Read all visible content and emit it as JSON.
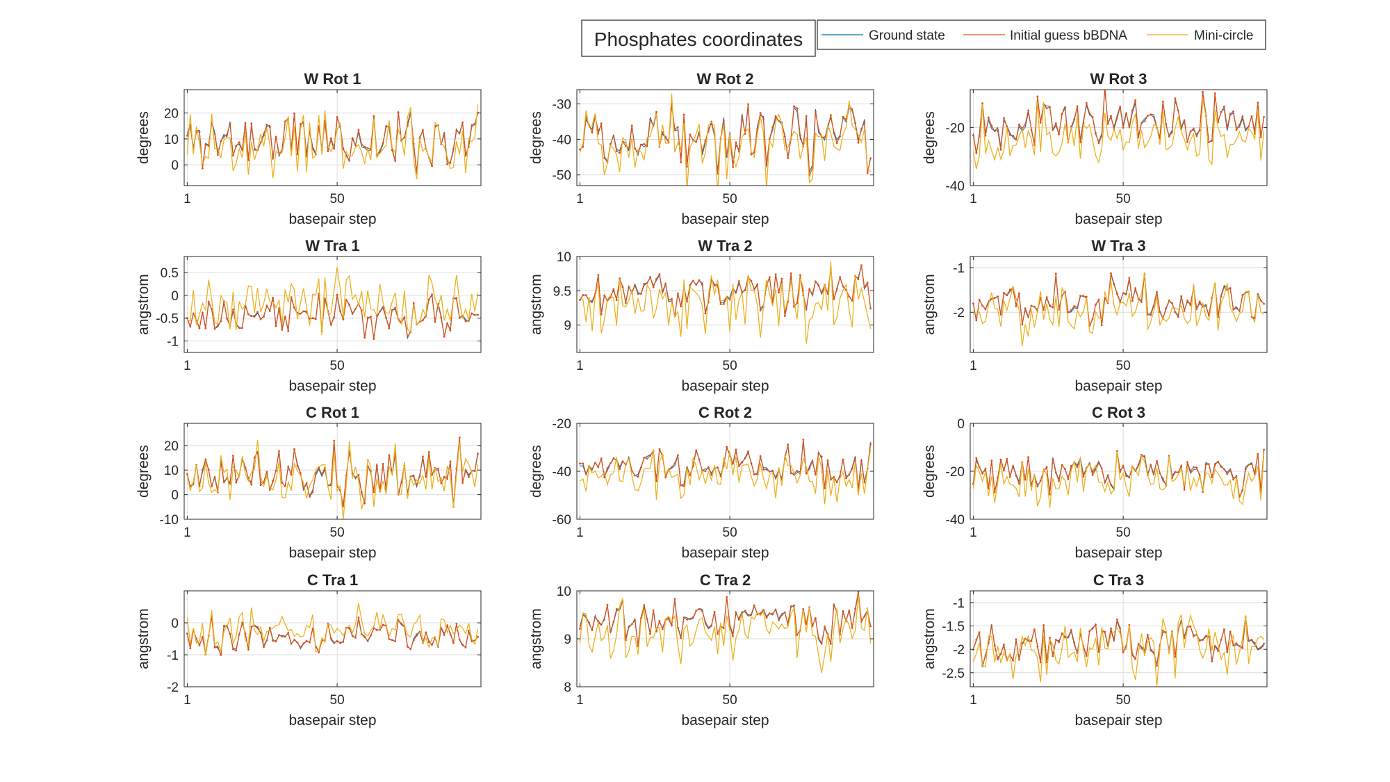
{
  "figure": {
    "suptitle": "Phosphates coordinates",
    "legend": [
      {
        "name": "Ground state",
        "color": "#0072BD"
      },
      {
        "name": "Initial guess bBDNA",
        "color": "#D95319"
      },
      {
        "name": "Mini-circle",
        "color": "#EDB120"
      }
    ]
  },
  "chart_data": [
    {
      "type": "line",
      "title": "W Rot 1",
      "xlabel": "basepair step",
      "ylabel": "degrees",
      "xlim": [
        0,
        97
      ],
      "ylim": [
        -8,
        29
      ],
      "xticks": [
        1,
        50
      ],
      "yticks": [
        0,
        10,
        20
      ],
      "series": [
        {
          "name": "Ground state",
          "seed": 11,
          "mean": 10,
          "amp": 9,
          "offset": 0,
          "jitter": 0
        },
        {
          "name": "Initial guess bBDNA",
          "seed": 11,
          "mean": 10,
          "amp": 9,
          "offset": 0,
          "jitter": 1
        },
        {
          "name": "Mini-circle",
          "seed": 11,
          "mean": 10,
          "amp": 9,
          "offset": -2,
          "jitter": 6
        }
      ]
    },
    {
      "type": "line",
      "title": "W Rot 2",
      "xlabel": "basepair step",
      "ylabel": "degrees",
      "xlim": [
        0,
        97
      ],
      "ylim": [
        -53,
        -26
      ],
      "xticks": [
        1,
        50
      ],
      "yticks": [
        -50,
        -40,
        -30
      ],
      "series": [
        {
          "name": "Ground state",
          "seed": 12,
          "mean": -38,
          "amp": 7,
          "offset": 0,
          "jitter": 0
        },
        {
          "name": "Initial guess bBDNA",
          "seed": 12,
          "mean": -38,
          "amp": 7,
          "offset": 0,
          "jitter": 1
        },
        {
          "name": "Mini-circle",
          "seed": 12,
          "mean": -38,
          "amp": 7,
          "offset": -2,
          "jitter": 5
        }
      ]
    },
    {
      "type": "line",
      "title": "W Rot 3",
      "xlabel": "basepair step",
      "ylabel": "degrees",
      "xlim": [
        0,
        97
      ],
      "ylim": [
        -40,
        -7
      ],
      "xticks": [
        1,
        50
      ],
      "yticks": [
        -40,
        -20
      ],
      "series": [
        {
          "name": "Ground state",
          "seed": 13,
          "mean": -18,
          "amp": 6,
          "offset": 0,
          "jitter": 0
        },
        {
          "name": "Initial guess bBDNA",
          "seed": 13,
          "mean": -18,
          "amp": 6,
          "offset": 0,
          "jitter": 1
        },
        {
          "name": "Mini-circle",
          "seed": 13,
          "mean": -18,
          "amp": 6,
          "offset": -5,
          "jitter": 6
        }
      ]
    },
    {
      "type": "line",
      "title": "W Tra 1",
      "xlabel": "basepair step",
      "ylabel": "angstrom",
      "xlim": [
        0,
        97
      ],
      "ylim": [
        -1.25,
        0.85
      ],
      "xticks": [
        1,
        50
      ],
      "yticks": [
        -1,
        -0.5,
        0,
        0.5
      ],
      "series": [
        {
          "name": "Ground state",
          "seed": 14,
          "mean": -0.45,
          "amp": 0.35,
          "offset": 0,
          "jitter": 0
        },
        {
          "name": "Initial guess bBDNA",
          "seed": 14,
          "mean": -0.45,
          "amp": 0.35,
          "offset": 0,
          "jitter": 0.04
        },
        {
          "name": "Mini-circle",
          "seed": 14,
          "mean": -0.45,
          "amp": 0.35,
          "offset": 0.25,
          "jitter": 0.4
        }
      ]
    },
    {
      "type": "line",
      "title": "W Tra 2",
      "xlabel": "basepair step",
      "ylabel": "angstrom",
      "xlim": [
        0,
        97
      ],
      "ylim": [
        8.6,
        10
      ],
      "xticks": [
        1,
        50
      ],
      "yticks": [
        9,
        9.5,
        10
      ],
      "series": [
        {
          "name": "Ground state",
          "seed": 15,
          "mean": 9.5,
          "amp": 0.25,
          "offset": 0,
          "jitter": 0
        },
        {
          "name": "Initial guess bBDNA",
          "seed": 15,
          "mean": 9.5,
          "amp": 0.25,
          "offset": 0,
          "jitter": 0.03
        },
        {
          "name": "Mini-circle",
          "seed": 15,
          "mean": 9.5,
          "amp": 0.25,
          "offset": -0.2,
          "jitter": 0.3
        }
      ]
    },
    {
      "type": "line",
      "title": "W Tra 3",
      "xlabel": "basepair step",
      "ylabel": "angstrom",
      "xlim": [
        0,
        97
      ],
      "ylim": [
        -2.9,
        -0.75
      ],
      "xticks": [
        1,
        50
      ],
      "yticks": [
        -2,
        -1
      ],
      "series": [
        {
          "name": "Ground state",
          "seed": 16,
          "mean": -1.8,
          "amp": 0.4,
          "offset": 0,
          "jitter": 0
        },
        {
          "name": "Initial guess bBDNA",
          "seed": 16,
          "mean": -1.8,
          "amp": 0.4,
          "offset": 0,
          "jitter": 0.04
        },
        {
          "name": "Mini-circle",
          "seed": 16,
          "mean": -1.8,
          "amp": 0.4,
          "offset": -0.15,
          "jitter": 0.35
        }
      ]
    },
    {
      "type": "line",
      "title": "C Rot 1",
      "xlabel": "basepair step",
      "ylabel": "degrees",
      "xlim": [
        0,
        97
      ],
      "ylim": [
        -10,
        29
      ],
      "xticks": [
        1,
        50
      ],
      "yticks": [
        -10,
        0,
        10,
        20
      ],
      "series": [
        {
          "name": "Ground state",
          "seed": 17,
          "mean": 9,
          "amp": 9,
          "offset": 0,
          "jitter": 0
        },
        {
          "name": "Initial guess bBDNA",
          "seed": 17,
          "mean": 9,
          "amp": 9,
          "offset": 0,
          "jitter": 1
        },
        {
          "name": "Mini-circle",
          "seed": 17,
          "mean": 9,
          "amp": 9,
          "offset": -1,
          "jitter": 6
        }
      ]
    },
    {
      "type": "line",
      "title": "C Rot 2",
      "xlabel": "basepair step",
      "ylabel": "degrees",
      "xlim": [
        0,
        97
      ],
      "ylim": [
        -60,
        -20
      ],
      "xticks": [
        1,
        50
      ],
      "yticks": [
        -60,
        -40,
        -20
      ],
      "series": [
        {
          "name": "Ground state",
          "seed": 18,
          "mean": -38,
          "amp": 6,
          "offset": 0,
          "jitter": 0
        },
        {
          "name": "Initial guess bBDNA",
          "seed": 18,
          "mean": -38,
          "amp": 6,
          "offset": 0,
          "jitter": 1
        },
        {
          "name": "Mini-circle",
          "seed": 18,
          "mean": -38,
          "amp": 6,
          "offset": -3,
          "jitter": 6
        }
      ]
    },
    {
      "type": "line",
      "title": "C Rot 3",
      "xlabel": "basepair step",
      "ylabel": "degrees",
      "xlim": [
        0,
        97
      ],
      "ylim": [
        -40,
        0
      ],
      "xticks": [
        1,
        50
      ],
      "yticks": [
        -40,
        -20,
        0
      ],
      "series": [
        {
          "name": "Ground state",
          "seed": 19,
          "mean": -20,
          "amp": 6,
          "offset": 0,
          "jitter": 0
        },
        {
          "name": "Initial guess bBDNA",
          "seed": 19,
          "mean": -20,
          "amp": 6,
          "offset": 0,
          "jitter": 1
        },
        {
          "name": "Mini-circle",
          "seed": 19,
          "mean": -20,
          "amp": 6,
          "offset": -4,
          "jitter": 5
        }
      ]
    },
    {
      "type": "line",
      "title": "C Tra 1",
      "xlabel": "basepair step",
      "ylabel": "angstrom",
      "xlim": [
        0,
        97
      ],
      "ylim": [
        -2,
        1
      ],
      "xticks": [
        1,
        50
      ],
      "yticks": [
        -2,
        -1,
        0
      ],
      "series": [
        {
          "name": "Ground state",
          "seed": 20,
          "mean": -0.45,
          "amp": 0.4,
          "offset": 0,
          "jitter": 0
        },
        {
          "name": "Initial guess bBDNA",
          "seed": 20,
          "mean": -0.45,
          "amp": 0.4,
          "offset": 0,
          "jitter": 0.05
        },
        {
          "name": "Mini-circle",
          "seed": 20,
          "mean": -0.45,
          "amp": 0.4,
          "offset": 0.2,
          "jitter": 0.4
        }
      ]
    },
    {
      "type": "line",
      "title": "C Tra 2",
      "xlabel": "basepair step",
      "ylabel": "angstrom",
      "xlim": [
        0,
        97
      ],
      "ylim": [
        8,
        10
      ],
      "xticks": [
        1,
        50
      ],
      "yticks": [
        8,
        9,
        10
      ],
      "series": [
        {
          "name": "Ground state",
          "seed": 21,
          "mean": 9.4,
          "amp": 0.35,
          "offset": 0,
          "jitter": 0
        },
        {
          "name": "Initial guess bBDNA",
          "seed": 21,
          "mean": 9.4,
          "amp": 0.35,
          "offset": 0,
          "jitter": 0.04
        },
        {
          "name": "Mini-circle",
          "seed": 21,
          "mean": 9.4,
          "amp": 0.35,
          "offset": -0.25,
          "jitter": 0.35
        }
      ]
    },
    {
      "type": "line",
      "title": "C Tra 3",
      "xlabel": "basepair step",
      "ylabel": "angstrom",
      "xlim": [
        0,
        97
      ],
      "ylim": [
        -2.8,
        -0.75
      ],
      "xticks": [
        1,
        50
      ],
      "yticks": [
        -2.5,
        -2,
        -1.5,
        -1
      ],
      "series": [
        {
          "name": "Ground state",
          "seed": 22,
          "mean": -1.8,
          "amp": 0.35,
          "offset": 0,
          "jitter": 0
        },
        {
          "name": "Initial guess bBDNA",
          "seed": 22,
          "mean": -1.8,
          "amp": 0.35,
          "offset": 0,
          "jitter": 0.04
        },
        {
          "name": "Mini-circle",
          "seed": 22,
          "mean": -1.8,
          "amp": 0.35,
          "offset": -0.1,
          "jitter": 0.4
        }
      ]
    }
  ]
}
